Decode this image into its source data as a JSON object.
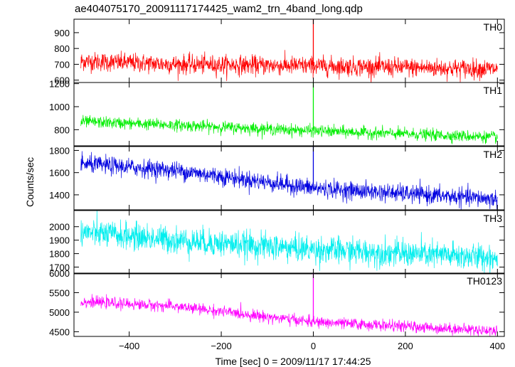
{
  "title": "ae404075170_20091117174425_wam2_trn_4band_long.qdp",
  "chart_data": {
    "type": "line",
    "title": "ae404075170_20091117174425_wam2_trn_4band_long.qdp",
    "xlabel": "Time [sec] 0 = 2009/11/17 17:44:25",
    "ylabel": "Counts/sec",
    "xlim": [
      -520,
      415
    ],
    "xticks": [
      -400,
      -200,
      0,
      200,
      400
    ],
    "xtick_labels": [
      "−400",
      "−200",
      "0",
      "200",
      "400"
    ],
    "x_range_data": [
      -505,
      400
    ],
    "grid": false,
    "legend": "none",
    "series": [
      {
        "name": "TH0",
        "color": "#ff0000",
        "ylim": [
          585,
          985
        ],
        "yticks": [
          600,
          700,
          800,
          900
        ],
        "trend": [
          [
            -505,
            720
          ],
          [
            -300,
            700
          ],
          [
            0,
            690
          ],
          [
            400,
            670
          ]
        ],
        "noise_sd": 30,
        "spike": {
          "x": 0,
          "y": 985
        }
      },
      {
        "name": "TH1",
        "color": "#00ee00",
        "ylim": [
          660,
          1210
        ],
        "yticks": [
          800,
          1000,
          1200
        ],
        "trend": [
          [
            -505,
            870
          ],
          [
            -300,
            840
          ],
          [
            0,
            790
          ],
          [
            400,
            735
          ]
        ],
        "noise_sd": 25,
        "spike": {
          "x": 0,
          "y": 1210
        }
      },
      {
        "name": "TH2",
        "color": "#0000e0",
        "ylim": [
          1265,
          1835
        ],
        "yticks": [
          1400,
          1600,
          1800
        ],
        "trend": [
          [
            -505,
            1680
          ],
          [
            -300,
            1620
          ],
          [
            0,
            1460
          ],
          [
            400,
            1360
          ]
        ],
        "noise_sd": 40,
        "spike": {
          "x": 0,
          "y": 1835
        }
      },
      {
        "name": "TH3",
        "color": "#00eeee",
        "ylim": [
          1650,
          2120
        ],
        "yticks": [
          1700,
          1800,
          1900,
          2000
        ],
        "trend": [
          [
            -505,
            1960
          ],
          [
            -300,
            1900
          ],
          [
            0,
            1830
          ],
          [
            400,
            1770
          ]
        ],
        "noise_sd": 50
      },
      {
        "name": "TH0123",
        "color": "#ff00ff",
        "ylim": [
          4380,
          6000
        ],
        "yticks": [
          4500,
          5000,
          5500,
          6000
        ],
        "trend": [
          [
            -505,
            5270
          ],
          [
            -300,
            5150
          ],
          [
            0,
            4750
          ],
          [
            400,
            4520
          ]
        ],
        "noise_sd": 70,
        "spike": {
          "x": 0,
          "y": 6000
        }
      }
    ]
  }
}
